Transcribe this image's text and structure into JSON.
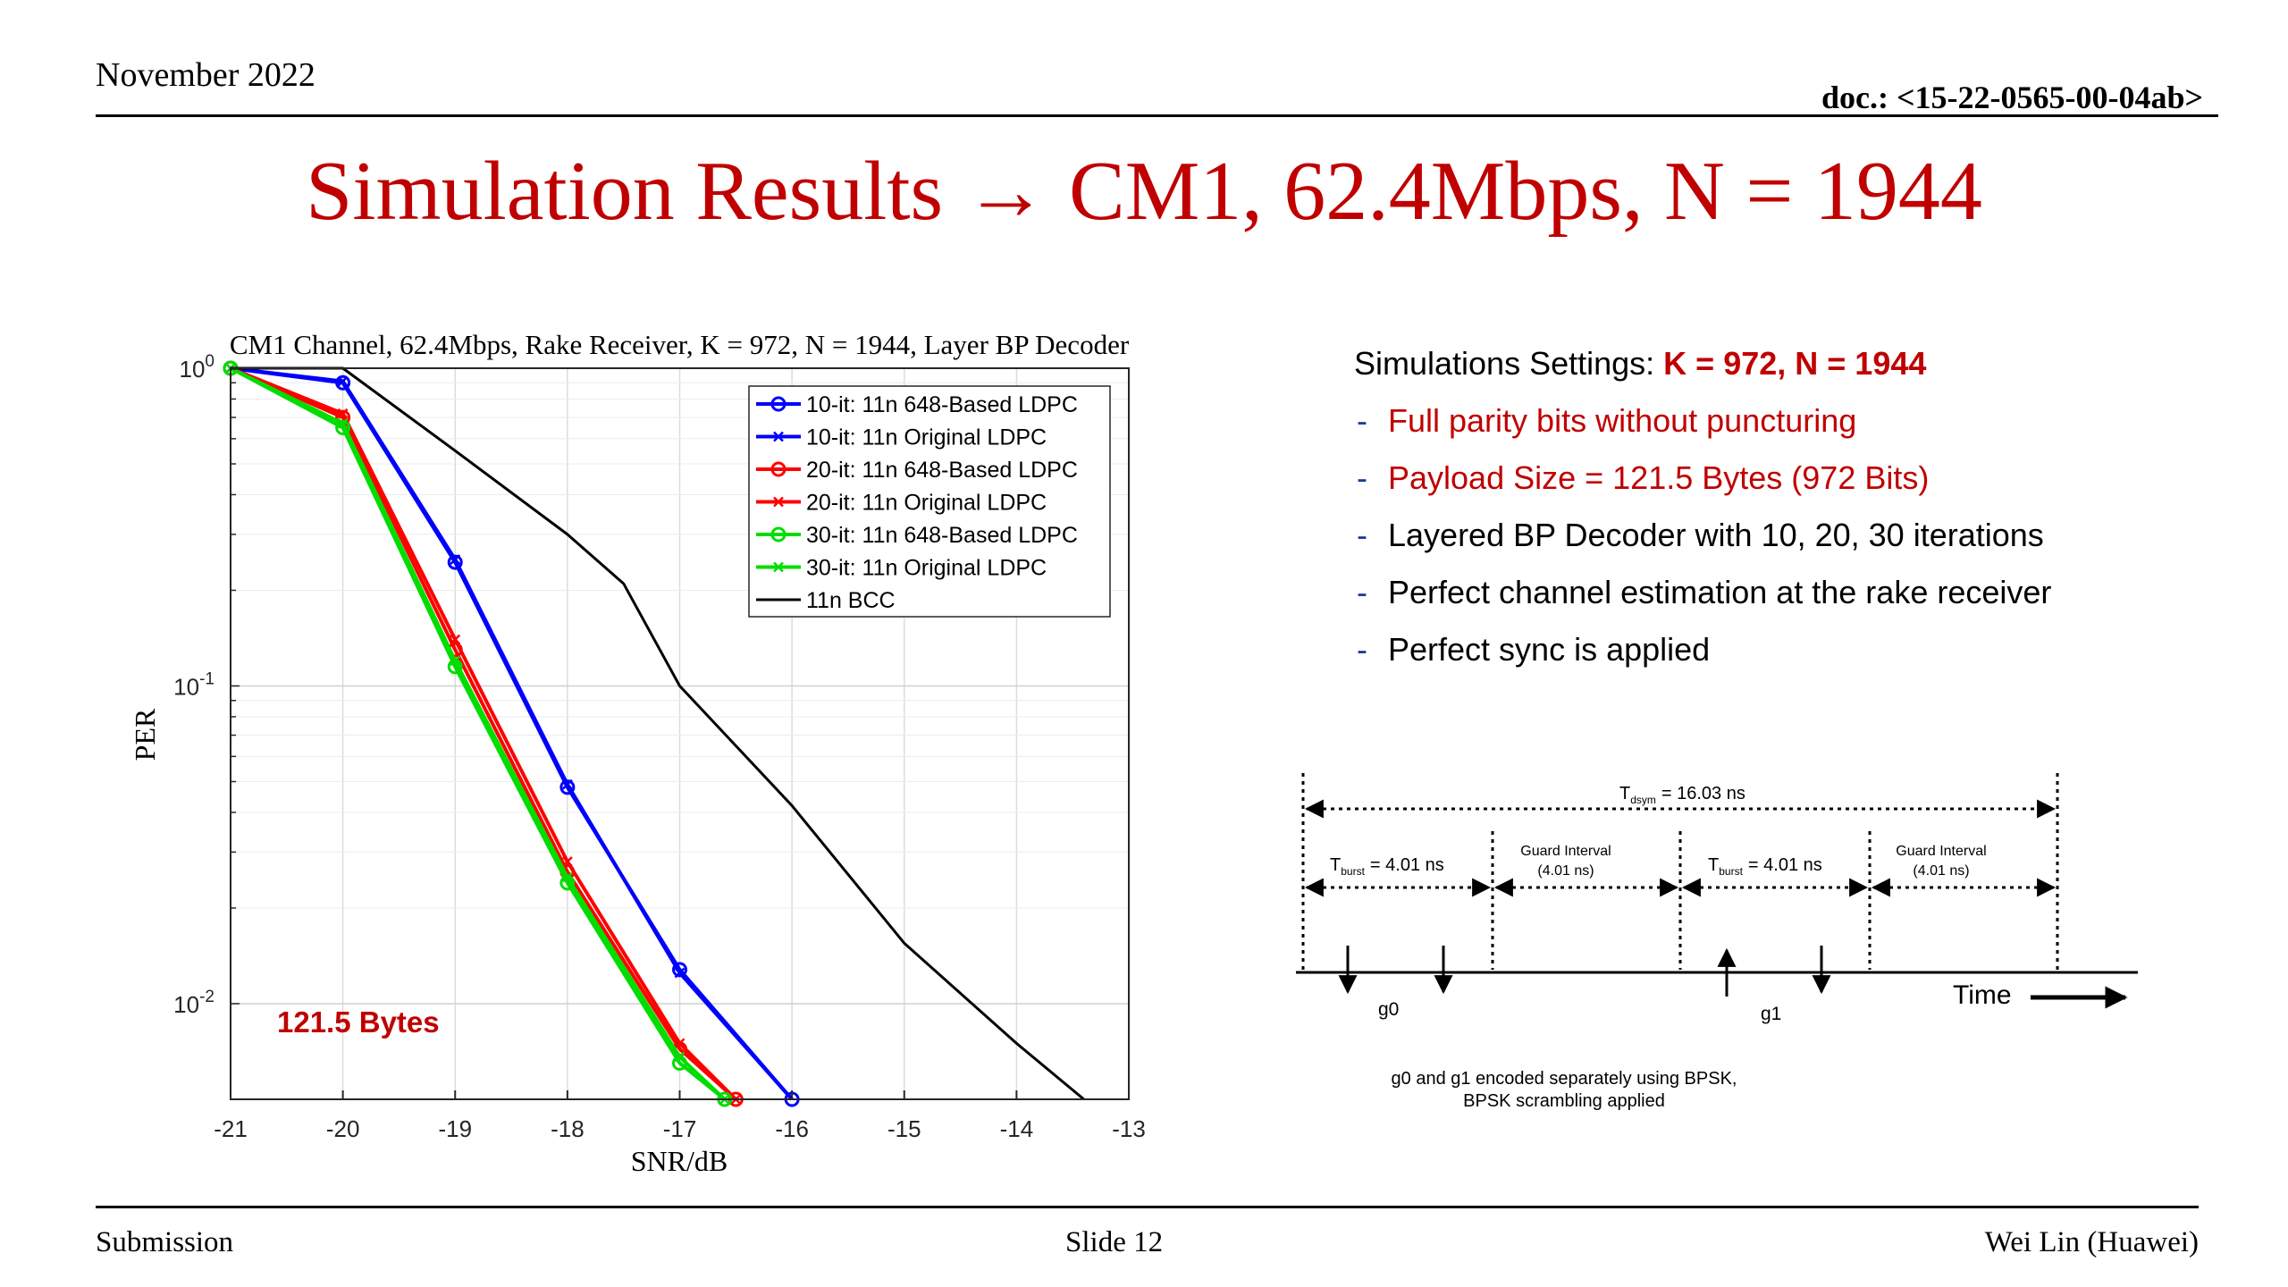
{
  "header": {
    "date": "November 2022",
    "doc": "doc.: <15-22-0565-00-04ab>"
  },
  "title": "Simulation Results → CM1, 62.4Mbps, N = 1944",
  "chart_data": {
    "type": "line",
    "title": "CM1 Channel, 62.4Mbps, Rake Receiver, K = 972, N = 1944, Layer BP Decoder",
    "xlabel": "SNR/dB",
    "ylabel": "PER",
    "yscale": "log",
    "xlim": [
      -21,
      -13
    ],
    "ylim": [
      0.005,
      1
    ],
    "xticks": [
      "-21",
      "-20",
      "-19",
      "-18",
      "-17",
      "-16",
      "-15",
      "-14",
      "-13"
    ],
    "yticks": [
      {
        "value": 1,
        "base": "10",
        "exp": "0"
      },
      {
        "value": 0.1,
        "base": "10",
        "exp": "-1"
      },
      {
        "value": 0.01,
        "base": "10",
        "exp": "-2"
      }
    ],
    "grid": true,
    "legend_position": "top-right",
    "annotation": "121.5 Bytes",
    "series": [
      {
        "name": "10-it: 11n 648-Based LDPC",
        "color": "#0000ff",
        "marker": "circle",
        "x": [
          -21,
          -20,
          -19,
          -18,
          -17,
          -16
        ],
        "y": [
          1,
          0.9,
          0.245,
          0.048,
          0.0128,
          0.0048
        ]
      },
      {
        "name": "10-it: 11n Original LDPC",
        "color": "#0000ff",
        "marker": "x",
        "x": [
          -21,
          -20,
          -19,
          -18,
          -17,
          -16
        ],
        "y": [
          1,
          0.91,
          0.25,
          0.049,
          0.0125,
          0.0047
        ]
      },
      {
        "name": "20-it: 11n 648-Based LDPC",
        "color": "#ff0000",
        "marker": "circle",
        "x": [
          -21,
          -20,
          -19,
          -18,
          -17,
          -16.5
        ],
        "y": [
          1,
          0.7,
          0.13,
          0.026,
          0.0072,
          0.0048
        ]
      },
      {
        "name": "20-it: 11n Original LDPC",
        "color": "#ff0000",
        "marker": "x",
        "x": [
          -21,
          -20,
          -19,
          -18,
          -17,
          -16.5
        ],
        "y": [
          1,
          0.72,
          0.14,
          0.028,
          0.0075,
          0.005
        ]
      },
      {
        "name": "30-it: 11n 648-Based LDPC",
        "color": "#00dd00",
        "marker": "circle",
        "x": [
          -21,
          -20,
          -19,
          -18,
          -17,
          -16.6
        ],
        "y": [
          1,
          0.65,
          0.115,
          0.024,
          0.0065,
          0.0048
        ]
      },
      {
        "name": "30-it: 11n Original LDPC",
        "color": "#00dd00",
        "marker": "x",
        "x": [
          -21,
          -20,
          -19,
          -18,
          -17,
          -16.6
        ],
        "y": [
          1,
          0.67,
          0.12,
          0.025,
          0.0068,
          0.005
        ]
      },
      {
        "name": "11n BCC",
        "color": "#000000",
        "marker": "none",
        "x": [
          -21,
          -20,
          -19,
          -18,
          -17.5,
          -17,
          -16,
          -15,
          -14,
          -13.4
        ],
        "y": [
          1,
          1,
          0.55,
          0.3,
          0.21,
          0.1,
          0.042,
          0.0155,
          0.0075,
          0.005
        ]
      }
    ]
  },
  "settings": {
    "label": "Simulations Settings: ",
    "value": "K = 972, N = 1944",
    "items": [
      "Full parity bits without puncturing",
      "Payload Size = 121.5 Bytes (972 Bits)",
      "Layered BP Decoder with 10, 20, 30 iterations",
      "Perfect channel estimation at the rake receiver",
      "Perfect sync is applied"
    ]
  },
  "diagram": {
    "tsym_main": "T",
    "tsym_sub": "dsym",
    "tsym_value": "= 16.03 ns",
    "tburst_main": "T",
    "tburst_sub": "burst",
    "tburst_value": "= 4.01 ns",
    "guard_line1": "Guard Interval",
    "guard_line2": "(4.01 ns)",
    "time_label": "Time",
    "g0": "g0",
    "g1": "g1",
    "note_line1": "g0 and g1 encoded separately using BPSK,",
    "note_line2": "BPSK scrambling applied"
  },
  "footer": {
    "left": "Submission",
    "center": "Slide 12",
    "right": "Wei Lin (Huawei)"
  },
  "colors": {
    "title": "#c00000",
    "accent": "#c00000",
    "bullet": "#1f3a93"
  }
}
